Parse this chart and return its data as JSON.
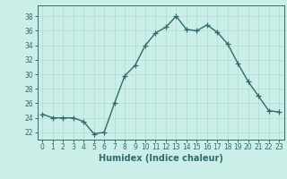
{
  "x": [
    0,
    1,
    2,
    3,
    4,
    5,
    6,
    7,
    8,
    9,
    10,
    11,
    12,
    13,
    14,
    15,
    16,
    17,
    18,
    19,
    20,
    21,
    22,
    23
  ],
  "y": [
    24.5,
    24.0,
    24.0,
    24.0,
    23.5,
    21.8,
    22.0,
    26.0,
    29.8,
    31.2,
    34.0,
    35.7,
    36.5,
    38.0,
    36.2,
    36.0,
    36.8,
    35.8,
    34.2,
    31.5,
    29.0,
    27.0,
    25.0,
    24.8
  ],
  "line_color": "#2e6b6b",
  "marker": "+",
  "marker_color": "#2e6b6b",
  "marker_size": 4,
  "bg_color": "#cceee8",
  "grid_color": "#aaddcc",
  "xlabel": "Humidex (Indice chaleur)",
  "xlim": [
    -0.5,
    23.5
  ],
  "ylim": [
    21,
    39.5
  ],
  "yticks": [
    22,
    24,
    26,
    28,
    30,
    32,
    34,
    36,
    38
  ],
  "xticks": [
    0,
    1,
    2,
    3,
    4,
    5,
    6,
    7,
    8,
    9,
    10,
    11,
    12,
    13,
    14,
    15,
    16,
    17,
    18,
    19,
    20,
    21,
    22,
    23
  ],
  "tick_color": "#2e6b6b",
  "label_fontsize": 7,
  "tick_fontsize": 5.5,
  "linewidth": 1.0
}
